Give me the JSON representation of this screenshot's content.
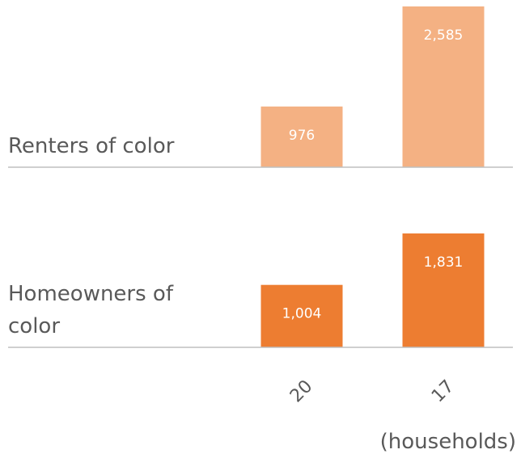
{
  "chart_data": {
    "type": "bar",
    "categories": [
      "20",
      "17"
    ],
    "series": [
      {
        "name": "Renters of color",
        "color": "#f4b183",
        "values": [
          976,
          2585
        ],
        "value_labels": [
          "976",
          "2,585"
        ]
      },
      {
        "name": "Homeowners of color",
        "color": "#ed7d31",
        "values": [
          1004,
          1831
        ],
        "value_labels": [
          "1,004",
          "1,831"
        ]
      }
    ],
    "unit_label": "(households)"
  }
}
